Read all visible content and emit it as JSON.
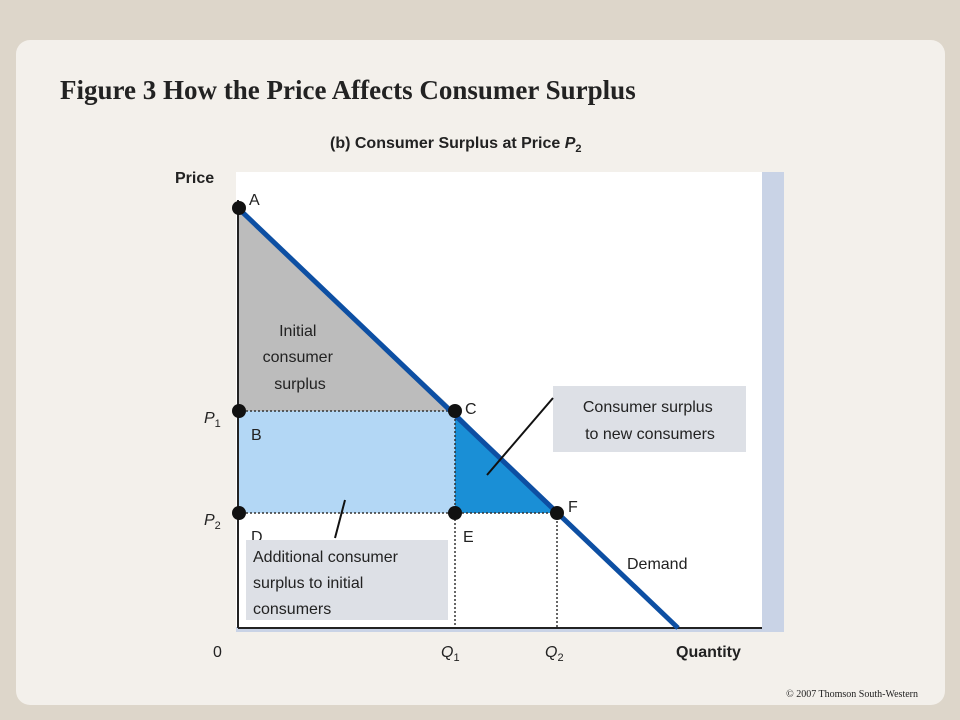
{
  "title": "Figure 3 How the Price Affects Consumer Surplus",
  "subtitle": {
    "text": "(b) Consumer Surplus at Price ",
    "letter": "P",
    "sub": "2"
  },
  "axes": {
    "y_label": "Price",
    "x_label": "Quantity",
    "origin": "0"
  },
  "price_labels": [
    {
      "letter": "P",
      "sub": "1"
    },
    {
      "letter": "P",
      "sub": "2"
    }
  ],
  "quantity_labels": [
    {
      "letter": "Q",
      "sub": "1"
    },
    {
      "letter": "Q",
      "sub": "2"
    }
  ],
  "points": {
    "A": "A",
    "B": "B",
    "C": "C",
    "D": "D",
    "E": "E",
    "F": "F"
  },
  "regions": {
    "initial": [
      "Initial",
      "consumer",
      "surplus"
    ]
  },
  "annotations": {
    "new_consumers": [
      "Consumer surplus",
      "to new consumers"
    ],
    "additional": [
      "Additional consumer",
      "surplus to initial",
      "consumers"
    ]
  },
  "curve_label": "Demand",
  "copyright": "© 2007 Thomson South-Western"
}
